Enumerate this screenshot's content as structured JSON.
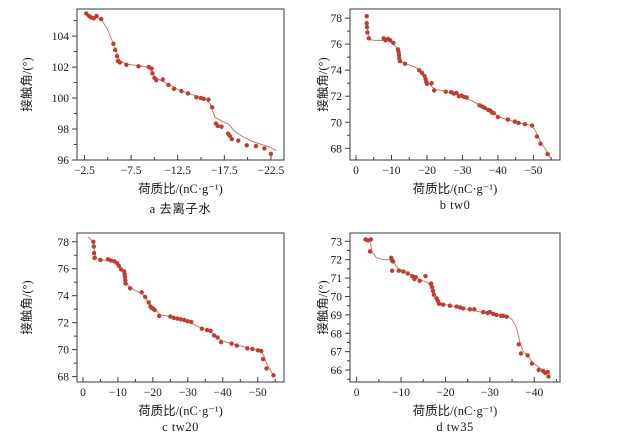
{
  "colors": {
    "marker": "#c23a30",
    "trend_line": "#d4766c",
    "axis": "#3a3a3a",
    "text": "#1a1a1a",
    "background": "#ffffff"
  },
  "chart_data": [
    {
      "type": "scatter",
      "caption": "a  去离子水",
      "xlabel": "荷质比/(nC·g⁻¹)",
      "ylabel": "接触角/(°)",
      "xlim": [
        -1.7,
        -23.9
      ],
      "ylim": [
        96,
        105.75
      ],
      "x_ticks": [
        -2.5,
        -7.5,
        -12.5,
        -17.5,
        -22.5
      ],
      "x_tick_labels": [
        "−2.5",
        "−7.5",
        "−12.5",
        "−17.5",
        "−22.5"
      ],
      "x_minor_ticks": [
        -5,
        -10,
        -15,
        -20
      ],
      "y_ticks": [
        96,
        98,
        100,
        102,
        104
      ],
      "y_tick_labels": [
        "96",
        "98",
        "100",
        "102",
        "104"
      ],
      "y_minor_ticks": [
        97,
        99,
        101,
        103,
        105
      ],
      "grid": false,
      "legend": "none",
      "points": [
        [
          -2.7,
          105.45
        ],
        [
          -3.0,
          105.3
        ],
        [
          -3.2,
          105.2
        ],
        [
          -3.5,
          105.15
        ],
        [
          -3.8,
          105.3
        ],
        [
          -4.3,
          105.1
        ],
        [
          -5.6,
          103.5
        ],
        [
          -5.8,
          103.1
        ],
        [
          -6.0,
          102.7
        ],
        [
          -6.1,
          102.4
        ],
        [
          -6.3,
          102.3
        ],
        [
          -7.0,
          102.15
        ],
        [
          -8.3,
          102.05
        ],
        [
          -9.4,
          102.0
        ],
        [
          -9.7,
          101.9
        ],
        [
          -9.8,
          101.6
        ],
        [
          -10.0,
          101.3
        ],
        [
          -10.2,
          101.15
        ],
        [
          -10.9,
          101.2
        ],
        [
          -11.5,
          100.85
        ],
        [
          -12.1,
          100.6
        ],
        [
          -12.9,
          100.45
        ],
        [
          -13.6,
          100.3
        ],
        [
          -14.5,
          100.05
        ],
        [
          -15.0,
          100.0
        ],
        [
          -15.3,
          99.95
        ],
        [
          -15.8,
          99.9
        ],
        [
          -16.2,
          99.4
        ],
        [
          -16.6,
          98.35
        ],
        [
          -16.8,
          98.2
        ],
        [
          -17.2,
          98.15
        ],
        [
          -17.9,
          97.7
        ],
        [
          -18.1,
          97.55
        ],
        [
          -18.3,
          97.35
        ],
        [
          -19.0,
          97.25
        ],
        [
          -19.9,
          96.95
        ],
        [
          -20.9,
          96.9
        ],
        [
          -21.8,
          96.75
        ],
        [
          -22.5,
          96.4
        ]
      ],
      "trend_line": [
        [
          -2.7,
          105.4
        ],
        [
          -4.3,
          105.1
        ],
        [
          -5.0,
          104.4
        ],
        [
          -5.8,
          103.2
        ],
        [
          -6.3,
          102.4
        ],
        [
          -7.0,
          102.2
        ],
        [
          -9.4,
          102.0
        ],
        [
          -10.0,
          101.4
        ],
        [
          -10.5,
          101.2
        ],
        [
          -11.5,
          100.9
        ],
        [
          -12.5,
          100.55
        ],
        [
          -13.6,
          100.3
        ],
        [
          -15.5,
          99.95
        ],
        [
          -16.0,
          99.6
        ],
        [
          -16.5,
          98.75
        ],
        [
          -17.3,
          98.5
        ],
        [
          -18.0,
          98.3
        ],
        [
          -18.6,
          97.85
        ],
        [
          -19.5,
          97.5
        ],
        [
          -20.5,
          97.2
        ],
        [
          -21.5,
          97.0
        ],
        [
          -22.3,
          96.85
        ],
        [
          -23.1,
          96.6
        ]
      ]
    },
    {
      "type": "scatter",
      "caption": "b  tw0",
      "xlabel": "荷质比/(nC·g⁻¹)",
      "ylabel": "接触角/(°)",
      "xlim": [
        1.7,
        -57.5
      ],
      "ylim": [
        67.1,
        78.7
      ],
      "x_ticks": [
        0,
        -10,
        -20,
        -30,
        -40,
        -50
      ],
      "x_tick_labels": [
        "0",
        "−10",
        "−20",
        "−30",
        "−40",
        "−50"
      ],
      "x_minor_ticks": [
        -5,
        -15,
        -25,
        -35,
        -45,
        -55
      ],
      "y_ticks": [
        68,
        70,
        72,
        74,
        76,
        78
      ],
      "y_tick_labels": [
        "68",
        "70",
        "72",
        "74",
        "76",
        "78"
      ],
      "y_minor_ticks": [
        69,
        71,
        73,
        75,
        77
      ],
      "grid": false,
      "legend": "none",
      "points": [
        [
          -3.0,
          78.15
        ],
        [
          -3.0,
          77.6
        ],
        [
          -3.1,
          77.3
        ],
        [
          -3.2,
          76.9
        ],
        [
          -3.6,
          76.45
        ],
        [
          -7.8,
          76.45
        ],
        [
          -8.3,
          76.3
        ],
        [
          -9.0,
          76.4
        ],
        [
          -9.6,
          76.3
        ],
        [
          -10.5,
          76.1
        ],
        [
          -11.8,
          75.6
        ],
        [
          -12.0,
          75.4
        ],
        [
          -12.1,
          75.15
        ],
        [
          -12.2,
          74.9
        ],
        [
          -12.4,
          74.7
        ],
        [
          -13.8,
          74.5
        ],
        [
          -17.8,
          74.0
        ],
        [
          -18.6,
          73.8
        ],
        [
          -19.3,
          73.55
        ],
        [
          -19.6,
          73.3
        ],
        [
          -19.8,
          73.1
        ],
        [
          -20.0,
          72.95
        ],
        [
          -21.3,
          73.0
        ],
        [
          -22.0,
          72.45
        ],
        [
          -25.3,
          72.35
        ],
        [
          -26.8,
          72.3
        ],
        [
          -27.6,
          72.2
        ],
        [
          -28.3,
          72.25
        ],
        [
          -29.0,
          72.0
        ],
        [
          -29.8,
          72.05
        ],
        [
          -30.5,
          71.95
        ],
        [
          -31.2,
          71.9
        ],
        [
          -34.8,
          71.3
        ],
        [
          -35.6,
          71.2
        ],
        [
          -36.3,
          71.1
        ],
        [
          -37.3,
          70.95
        ],
        [
          -37.8,
          70.9
        ],
        [
          -38.3,
          70.75
        ],
        [
          -38.8,
          70.7
        ],
        [
          -40.0,
          70.4
        ],
        [
          -42.8,
          70.2
        ],
        [
          -44.8,
          70.05
        ],
        [
          -45.8,
          69.95
        ],
        [
          -47.6,
          69.85
        ],
        [
          -49.6,
          69.75
        ],
        [
          -51.0,
          68.9
        ],
        [
          -52.0,
          68.35
        ],
        [
          -54.0,
          67.55
        ]
      ],
      "trend_line": [
        [
          -3.0,
          77.8
        ],
        [
          -3.5,
          76.6
        ],
        [
          -4.0,
          76.35
        ],
        [
          -5.0,
          76.3
        ],
        [
          -9.0,
          76.25
        ],
        [
          -10.5,
          76.0
        ],
        [
          -11.5,
          75.7
        ],
        [
          -12.3,
          75.0
        ],
        [
          -13.0,
          74.6
        ],
        [
          -14.0,
          74.5
        ],
        [
          -17.0,
          74.2
        ],
        [
          -18.5,
          73.8
        ],
        [
          -19.5,
          73.3
        ],
        [
          -20.5,
          73.0
        ],
        [
          -21.5,
          72.7
        ],
        [
          -22.5,
          72.5
        ],
        [
          -24.0,
          72.45
        ],
        [
          -27.0,
          72.25
        ],
        [
          -30.0,
          72.0
        ],
        [
          -33.0,
          71.6
        ],
        [
          -36.0,
          71.15
        ],
        [
          -38.5,
          70.8
        ],
        [
          -40.0,
          70.45
        ],
        [
          -42.0,
          70.25
        ],
        [
          -46.0,
          69.95
        ],
        [
          -49.5,
          69.75
        ],
        [
          -50.5,
          69.4
        ],
        [
          -52.0,
          68.5
        ],
        [
          -53.5,
          67.9
        ],
        [
          -54.8,
          67.3
        ]
      ]
    },
    {
      "type": "scatter",
      "caption": "c  tw20",
      "xlabel": "荷质比/(nC·g⁻¹)",
      "ylabel": "接触角/(°)",
      "xlim": [
        1.7,
        -57.5
      ],
      "ylim": [
        67.6,
        78.65
      ],
      "x_ticks": [
        0,
        -10,
        -20,
        -30,
        -40,
        -50
      ],
      "x_tick_labels": [
        "0",
        "−10",
        "−20",
        "−30",
        "−40",
        "−50"
      ],
      "x_minor_ticks": [
        -5,
        -15,
        -25,
        -35,
        -45,
        -55
      ],
      "y_ticks": [
        68,
        70,
        72,
        74,
        76,
        78
      ],
      "y_tick_labels": [
        "68",
        "70",
        "72",
        "74",
        "76",
        "78"
      ],
      "y_minor_ticks": [
        69,
        71,
        73,
        75,
        77
      ],
      "grid": false,
      "legend": "none",
      "points": [
        [
          -3.0,
          78.0
        ],
        [
          -3.1,
          77.65
        ],
        [
          -3.2,
          77.15
        ],
        [
          -3.3,
          76.8
        ],
        [
          -5.0,
          76.65
        ],
        [
          -7.2,
          76.7
        ],
        [
          -8.0,
          76.6
        ],
        [
          -9.0,
          76.55
        ],
        [
          -9.8,
          76.4
        ],
        [
          -10.3,
          76.2
        ],
        [
          -10.9,
          75.95
        ],
        [
          -11.8,
          75.8
        ],
        [
          -11.9,
          75.6
        ],
        [
          -12.0,
          75.4
        ],
        [
          -12.1,
          75.15
        ],
        [
          -12.2,
          74.9
        ],
        [
          -13.5,
          74.55
        ],
        [
          -16.8,
          74.25
        ],
        [
          -17.8,
          73.9
        ],
        [
          -18.8,
          73.5
        ],
        [
          -19.3,
          73.2
        ],
        [
          -19.6,
          73.1
        ],
        [
          -20.0,
          73.05
        ],
        [
          -20.5,
          72.95
        ],
        [
          -21.8,
          72.5
        ],
        [
          -25.0,
          72.45
        ],
        [
          -26.0,
          72.35
        ],
        [
          -27.0,
          72.3
        ],
        [
          -28.0,
          72.25
        ],
        [
          -29.0,
          72.2
        ],
        [
          -30.0,
          72.1
        ],
        [
          -31.0,
          72.05
        ],
        [
          -34.0,
          71.55
        ],
        [
          -35.5,
          71.45
        ],
        [
          -36.5,
          71.4
        ],
        [
          -37.5,
          71.05
        ],
        [
          -38.5,
          70.9
        ],
        [
          -39.5,
          70.55
        ],
        [
          -42.5,
          70.45
        ],
        [
          -44.0,
          70.3
        ],
        [
          -47.0,
          70.1
        ],
        [
          -48.5,
          70.05
        ],
        [
          -50.0,
          69.95
        ],
        [
          -51.0,
          69.9
        ],
        [
          -51.5,
          69.3
        ],
        [
          -52.5,
          68.6
        ],
        [
          -54.5,
          68.1
        ]
      ],
      "trend_line": [
        [
          -1.5,
          78.35
        ],
        [
          -3.0,
          78.0
        ],
        [
          -3.5,
          77.0
        ],
        [
          -4.0,
          76.75
        ],
        [
          -6.0,
          76.65
        ],
        [
          -9.0,
          76.55
        ],
        [
          -10.5,
          76.1
        ],
        [
          -11.5,
          75.85
        ],
        [
          -12.3,
          75.1
        ],
        [
          -13.0,
          74.7
        ],
        [
          -14.5,
          74.45
        ],
        [
          -17.0,
          74.15
        ],
        [
          -18.5,
          73.6
        ],
        [
          -19.5,
          73.2
        ],
        [
          -20.5,
          73.0
        ],
        [
          -22.0,
          72.6
        ],
        [
          -24.0,
          72.5
        ],
        [
          -27.0,
          72.3
        ],
        [
          -30.0,
          72.1
        ],
        [
          -33.0,
          71.7
        ],
        [
          -36.0,
          71.4
        ],
        [
          -38.0,
          71.0
        ],
        [
          -39.5,
          70.7
        ],
        [
          -41.0,
          70.55
        ],
        [
          -44.0,
          70.35
        ],
        [
          -47.0,
          70.15
        ],
        [
          -50.0,
          69.95
        ],
        [
          -51.5,
          69.7
        ],
        [
          -52.5,
          69.0
        ],
        [
          -54.0,
          68.3
        ],
        [
          -54.9,
          68.0
        ]
      ]
    },
    {
      "type": "scatter",
      "caption": "d  tw35",
      "xlabel": "荷质比/(nC·g⁻¹)",
      "ylabel": "接触角/(°)",
      "xlim": [
        1.5,
        -45.8
      ],
      "ylim": [
        65.35,
        73.45
      ],
      "x_ticks": [
        0,
        -10,
        -20,
        -30,
        -40
      ],
      "x_tick_labels": [
        "0",
        "−10",
        "−20",
        "−30",
        "−40"
      ],
      "x_minor_ticks": [
        -5,
        -15,
        -25,
        -35,
        -45
      ],
      "y_ticks": [
        66,
        67,
        68,
        69,
        70,
        71,
        72,
        73
      ],
      "y_tick_labels": [
        "66",
        "67",
        "68",
        "69",
        "70",
        "71",
        "72",
        "73"
      ],
      "y_minor_ticks": [
        65.5,
        66.5,
        67.5,
        68.5,
        69.5,
        70.5,
        71.5,
        72.5
      ],
      "grid": false,
      "legend": "none",
      "points": [
        [
          -2.0,
          73.1
        ],
        [
          -2.5,
          73.05
        ],
        [
          -3.2,
          73.1
        ],
        [
          -3.0,
          72.45
        ],
        [
          -7.8,
          72.1
        ],
        [
          -8.0,
          71.95
        ],
        [
          -8.2,
          71.9
        ],
        [
          -8.0,
          71.4
        ],
        [
          -9.5,
          71.4
        ],
        [
          -10.5,
          71.35
        ],
        [
          -11.5,
          71.25
        ],
        [
          -12.5,
          71.1
        ],
        [
          -13.0,
          70.95
        ],
        [
          -13.3,
          71.05
        ],
        [
          -14.2,
          70.85
        ],
        [
          -15.5,
          71.1
        ],
        [
          -16.8,
          70.7
        ],
        [
          -17.0,
          70.5
        ],
        [
          -17.2,
          70.3
        ],
        [
          -17.4,
          70.1
        ],
        [
          -18.0,
          69.9
        ],
        [
          -18.3,
          69.75
        ],
        [
          -18.6,
          69.6
        ],
        [
          -19.5,
          69.55
        ],
        [
          -21.0,
          69.5
        ],
        [
          -22.5,
          69.45
        ],
        [
          -23.3,
          69.4
        ],
        [
          -24.0,
          69.35
        ],
        [
          -25.5,
          69.3
        ],
        [
          -26.5,
          69.3
        ],
        [
          -28.5,
          69.15
        ],
        [
          -29.5,
          69.1
        ],
        [
          -30.0,
          69.15
        ],
        [
          -30.8,
          69.05
        ],
        [
          -31.5,
          69.0
        ],
        [
          -32.5,
          68.95
        ],
        [
          -33.0,
          68.95
        ],
        [
          -33.8,
          68.9
        ],
        [
          -36.5,
          67.4
        ],
        [
          -37.0,
          66.9
        ],
        [
          -38.5,
          66.8
        ],
        [
          -39.5,
          66.35
        ],
        [
          -41.0,
          66.0
        ],
        [
          -42.0,
          65.95
        ],
        [
          -42.5,
          65.85
        ],
        [
          -43.0,
          65.9
        ],
        [
          -43.2,
          65.65
        ]
      ],
      "trend_line": [
        [
          -2.0,
          73.15
        ],
        [
          -3.0,
          73.0
        ],
        [
          -3.5,
          72.4
        ],
        [
          -4.5,
          72.1
        ],
        [
          -6.0,
          72.0
        ],
        [
          -7.5,
          72.0
        ],
        [
          -8.5,
          71.8
        ],
        [
          -9.5,
          71.5
        ],
        [
          -11.0,
          71.35
        ],
        [
          -13.0,
          71.05
        ],
        [
          -14.5,
          70.9
        ],
        [
          -16.0,
          70.75
        ],
        [
          -17.0,
          70.4
        ],
        [
          -17.5,
          70.0
        ],
        [
          -18.5,
          69.65
        ],
        [
          -20.0,
          69.55
        ],
        [
          -23.0,
          69.4
        ],
        [
          -26.0,
          69.25
        ],
        [
          -29.0,
          69.1
        ],
        [
          -32.0,
          69.0
        ],
        [
          -34.0,
          68.9
        ],
        [
          -35.0,
          68.75
        ],
        [
          -36.0,
          68.3
        ],
        [
          -36.8,
          67.5
        ],
        [
          -37.5,
          67.0
        ],
        [
          -38.5,
          66.8
        ],
        [
          -39.5,
          66.45
        ],
        [
          -41.0,
          66.15
        ],
        [
          -42.5,
          65.95
        ],
        [
          -43.5,
          65.8
        ]
      ]
    }
  ]
}
